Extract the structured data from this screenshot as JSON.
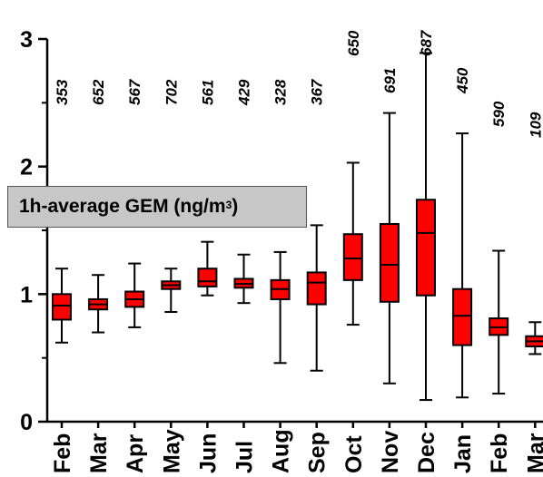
{
  "chart_data": {
    "type": "box",
    "ylabel_main": "1h-average GEM (ng/m",
    "ylabel_sup": "3",
    "ylabel_close": ")",
    "ylim": [
      0,
      3
    ],
    "yticks": [
      "0",
      "1",
      "2",
      "3"
    ],
    "box_color": "#ff0000",
    "categories": [
      "Feb",
      "Mar",
      "Apr",
      "May",
      "Jun",
      "Jul",
      "Aug",
      "Sep",
      "Oct",
      "Nov",
      "Dec",
      "Jan",
      "Feb",
      "Mar"
    ],
    "counts": [
      "353",
      "652",
      "567",
      "702",
      "561",
      "429",
      "328",
      "367",
      "650",
      "691",
      "687",
      "450",
      "590",
      "109"
    ],
    "boxes": [
      {
        "min": 0.62,
        "q1": 0.8,
        "median": 0.91,
        "q3": 1.0,
        "max": 1.2
      },
      {
        "min": 0.7,
        "q1": 0.88,
        "median": 0.92,
        "q3": 0.96,
        "max": 1.15
      },
      {
        "min": 0.74,
        "q1": 0.9,
        "median": 0.96,
        "q3": 1.02,
        "max": 1.24
      },
      {
        "min": 0.86,
        "q1": 1.04,
        "median": 1.07,
        "q3": 1.1,
        "max": 1.2
      },
      {
        "min": 0.99,
        "q1": 1.06,
        "median": 1.1,
        "q3": 1.2,
        "max": 1.41
      },
      {
        "min": 0.93,
        "q1": 1.05,
        "median": 1.08,
        "q3": 1.12,
        "max": 1.31
      },
      {
        "min": 0.46,
        "q1": 0.96,
        "median": 1.04,
        "q3": 1.11,
        "max": 1.33
      },
      {
        "min": 0.4,
        "q1": 0.92,
        "median": 1.09,
        "q3": 1.17,
        "max": 1.54
      },
      {
        "min": 0.76,
        "q1": 1.11,
        "median": 1.28,
        "q3": 1.47,
        "max": 2.03
      },
      {
        "min": 0.3,
        "q1": 0.94,
        "median": 1.23,
        "q3": 1.55,
        "max": 2.42
      },
      {
        "min": 0.17,
        "q1": 0.99,
        "median": 1.48,
        "q3": 1.74,
        "max": 2.89
      },
      {
        "min": 0.19,
        "q1": 0.6,
        "median": 0.83,
        "q3": 1.04,
        "max": 2.26
      },
      {
        "min": 0.22,
        "q1": 0.68,
        "median": 0.74,
        "q3": 0.81,
        "max": 1.34
      },
      {
        "min": 0.53,
        "q1": 0.59,
        "median": 0.63,
        "q3": 0.67,
        "max": 0.78
      }
    ]
  }
}
